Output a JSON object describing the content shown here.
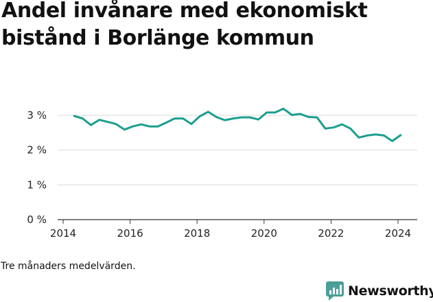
{
  "title": "Andel invånare med ekonomiskt bistånd i Borlänge kommun",
  "caption": "Tre månaders medelvärden.",
  "brand": {
    "name": "Newsworthy",
    "color": "#4a9f97",
    "icon": "bar-chart-logo-icon"
  },
  "colors": {
    "line": "#1a9e8f",
    "grid": "#d9d9d9",
    "axis": "#333333"
  },
  "chart_data": {
    "type": "line",
    "title": "Andel invånare med ekonomiskt bistånd i Borlänge kommun",
    "xlabel": "",
    "ylabel": "",
    "grid": true,
    "xlim": [
      2014,
      2024.5
    ],
    "ylim": [
      0,
      3.3
    ],
    "x_ticks": [
      2014,
      2016,
      2018,
      2020,
      2022,
      2024
    ],
    "x_tick_labels": [
      "2014",
      "2016",
      "2018",
      "2020",
      "2022",
      "2024"
    ],
    "y_ticks": [
      0,
      1,
      2,
      3
    ],
    "y_tick_labels": [
      "0 %",
      "1 %",
      "2 %",
      "3 %"
    ],
    "series": [
      {
        "x": [
          2014.33,
          2014.58,
          2014.83,
          2015.08,
          2015.33,
          2015.58,
          2015.83,
          2016.08,
          2016.33,
          2016.58,
          2016.83,
          2017.08,
          2017.33,
          2017.58,
          2017.83,
          2018.08,
          2018.33,
          2018.58,
          2018.83,
          2019.08,
          2019.33,
          2019.58,
          2019.83,
          2020.08,
          2020.33,
          2020.58,
          2020.83,
          2021.08,
          2021.33,
          2021.58,
          2021.83,
          2022.08,
          2022.33,
          2022.58,
          2022.83,
          2023.08,
          2023.33,
          2023.58,
          2023.83,
          2024.08
        ],
        "values": [
          2.98,
          2.91,
          2.72,
          2.87,
          2.81,
          2.75,
          2.59,
          2.68,
          2.74,
          2.68,
          2.68,
          2.79,
          2.91,
          2.91,
          2.75,
          2.97,
          3.1,
          2.95,
          2.86,
          2.91,
          2.94,
          2.94,
          2.88,
          3.08,
          3.08,
          3.19,
          3.01,
          3.04,
          2.95,
          2.94,
          2.62,
          2.65,
          2.74,
          2.62,
          2.36,
          2.42,
          2.45,
          2.42,
          2.26,
          2.43
        ]
      }
    ]
  }
}
